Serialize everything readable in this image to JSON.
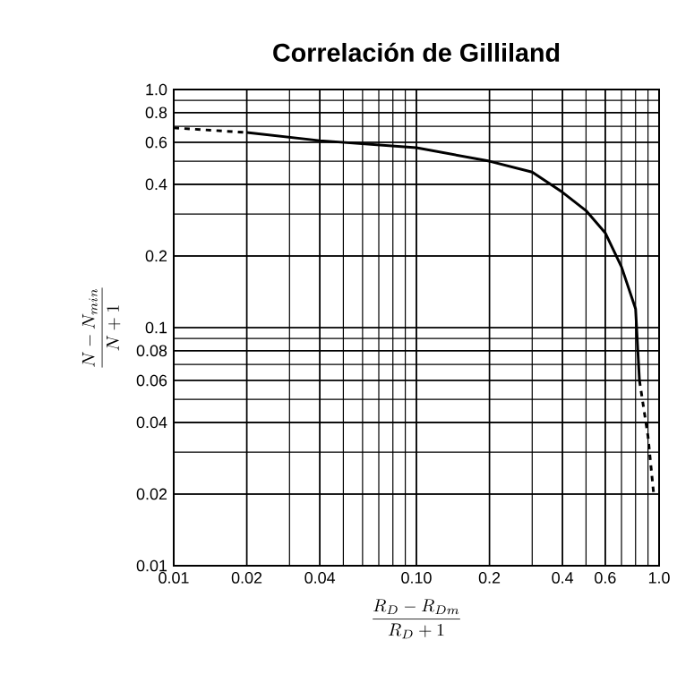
{
  "chart_data": {
    "type": "line",
    "title": "Correlación de Gilliland",
    "xlabel": "\\frac{R_D - R_{Dm}}{R_D + 1}",
    "ylabel": "\\frac{N - N_{min}}{N + 1}",
    "log": "xy",
    "grid": true,
    "xlim": [
      0.01,
      1.0
    ],
    "ylim": [
      0.01,
      1.0
    ],
    "xticks": [
      0.01,
      0.02,
      0.04,
      {
        "value": 0.1,
        "label": "0.10"
      },
      0.2,
      0.4,
      0.6,
      {
        "value": 1.0,
        "label": "1.0"
      }
    ],
    "yticks": [
      0.01,
      0.02,
      0.04,
      0.06,
      0.08,
      0.1,
      0.2,
      0.4,
      0.6,
      0.8,
      {
        "value": 1.0,
        "label": "1.0"
      }
    ],
    "series": [
      {
        "color": "#000000",
        "line_style": "dashed",
        "x": [
          0.01,
          0.02
        ],
        "values": [
          0.69,
          0.66
        ]
      },
      {
        "color": "#000000",
        "line_style": "solid",
        "x": [
          0.02,
          0.04,
          0.1,
          0.2,
          0.3,
          0.4,
          0.5,
          0.6,
          0.7,
          0.8,
          0.83
        ],
        "values": [
          0.66,
          0.61,
          0.57,
          0.5,
          0.45,
          0.37,
          0.31,
          0.25,
          0.18,
          0.12,
          0.06
        ]
      },
      {
        "color": "#000000",
        "line_style": "dashed",
        "x": [
          0.83,
          0.9,
          0.95
        ],
        "values": [
          0.06,
          0.035,
          0.02
        ]
      }
    ]
  }
}
